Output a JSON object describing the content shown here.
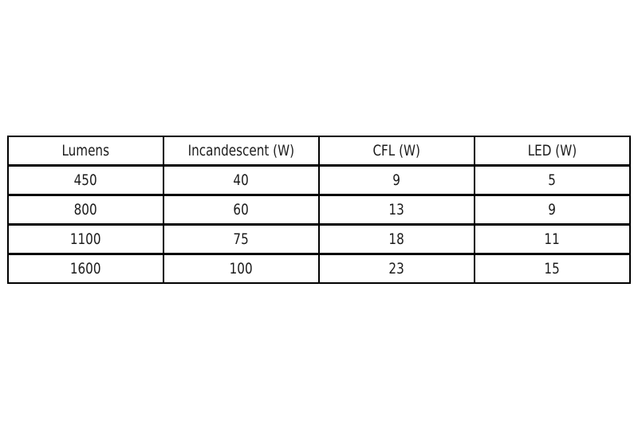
{
  "page": {
    "background": "#ffffff"
  },
  "colors": {
    "border": "#000000",
    "text": "#1c1c1c",
    "background": "#ffffff"
  },
  "chart_data": {
    "type": "table",
    "columns": [
      "Lumens",
      "Incandescent (W)",
      "CFL (W)",
      "LED (W)"
    ],
    "rows": [
      [
        "450",
        "40",
        "9",
        "5"
      ],
      [
        "800",
        "60",
        "13",
        "9"
      ],
      [
        "1100",
        "75",
        "18",
        "11"
      ],
      [
        "1600",
        "100",
        "23",
        "15"
      ]
    ]
  }
}
